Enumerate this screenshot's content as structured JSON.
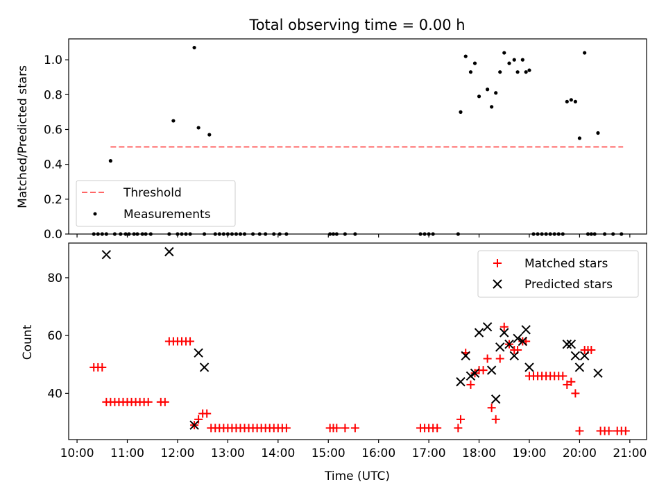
{
  "chart_data": [
    {
      "type": "scatter",
      "title": "Total observing time = 0.00 h",
      "ylabel": "Matched/Predicted stars",
      "xlabel": "",
      "ylim": [
        0,
        1.12
      ],
      "yticks": [
        "0.0",
        "0.2",
        "0.4",
        "0.6",
        "0.8",
        "1.0"
      ],
      "grid": false,
      "legend_position": "lower-left",
      "threshold": {
        "name": "Threshold",
        "value": 0.5,
        "x_start": "10:40",
        "x_end": "20:52",
        "color": "#ff6666",
        "style": "dashed"
      },
      "series": [
        {
          "name": "Measurements",
          "color": "#000000",
          "points": [
            [
              "10:20",
              0
            ],
            [
              "10:25",
              0
            ],
            [
              "10:30",
              0
            ],
            [
              "10:35",
              0
            ],
            [
              "10:40",
              0.42
            ],
            [
              "10:45",
              0
            ],
            [
              "10:52",
              0
            ],
            [
              "10:58",
              0
            ],
            [
              "11:02",
              0
            ],
            [
              "11:08",
              0
            ],
            [
              "11:12",
              0
            ],
            [
              "11:18",
              0
            ],
            [
              "11:22",
              0
            ],
            [
              "11:28",
              0
            ],
            [
              "11:50",
              0
            ],
            [
              "11:55",
              0.65
            ],
            [
              "12:00",
              0
            ],
            [
              "12:05",
              0
            ],
            [
              "12:10",
              0
            ],
            [
              "12:15",
              0
            ],
            [
              "12:20",
              1.07
            ],
            [
              "12:25",
              0.61
            ],
            [
              "12:32",
              0
            ],
            [
              "12:38",
              0.57
            ],
            [
              "12:45",
              0
            ],
            [
              "12:50",
              0
            ],
            [
              "12:55",
              0
            ],
            [
              "13:00",
              0
            ],
            [
              "13:05",
              0
            ],
            [
              "13:10",
              0
            ],
            [
              "13:15",
              0
            ],
            [
              "13:20",
              0
            ],
            [
              "13:30",
              0
            ],
            [
              "13:38",
              0
            ],
            [
              "13:45",
              0
            ],
            [
              "13:55",
              0
            ],
            [
              "14:02",
              0
            ],
            [
              "14:10",
              0
            ],
            [
              "15:02",
              0
            ],
            [
              "15:06",
              0
            ],
            [
              "15:10",
              0
            ],
            [
              "15:20",
              0
            ],
            [
              "15:32",
              0
            ],
            [
              "16:50",
              0
            ],
            [
              "16:55",
              0
            ],
            [
              "17:00",
              0
            ],
            [
              "17:05",
              0
            ],
            [
              "17:35",
              0
            ],
            [
              "17:38",
              0.7
            ],
            [
              "17:44",
              1.02
            ],
            [
              "17:50",
              0.93
            ],
            [
              "17:55",
              0.98
            ],
            [
              "18:00",
              0.79
            ],
            [
              "18:10",
              0.83
            ],
            [
              "18:15",
              0.73
            ],
            [
              "18:20",
              0.81
            ],
            [
              "18:25",
              0.93
            ],
            [
              "18:30",
              1.04
            ],
            [
              "18:36",
              0.98
            ],
            [
              "18:42",
              1.0
            ],
            [
              "18:46",
              0.93
            ],
            [
              "18:52",
              1.0
            ],
            [
              "18:56",
              0.93
            ],
            [
              "19:00",
              0.94
            ],
            [
              "19:05",
              0
            ],
            [
              "19:10",
              0
            ],
            [
              "19:15",
              0
            ],
            [
              "19:20",
              0
            ],
            [
              "19:25",
              0
            ],
            [
              "19:30",
              0
            ],
            [
              "19:35",
              0
            ],
            [
              "19:40",
              0
            ],
            [
              "19:45",
              0.76
            ],
            [
              "19:50",
              0.77
            ],
            [
              "19:55",
              0.76
            ],
            [
              "20:00",
              0.55
            ],
            [
              "20:06",
              1.04
            ],
            [
              "20:10",
              0
            ],
            [
              "20:14",
              0
            ],
            [
              "20:18",
              0
            ],
            [
              "20:22",
              0.58
            ],
            [
              "20:30",
              0
            ],
            [
              "20:40",
              0
            ],
            [
              "20:50",
              0
            ]
          ]
        }
      ]
    },
    {
      "type": "scatter",
      "title": "",
      "ylabel": "Count",
      "xlabel": "Time (UTC)",
      "xlim": [
        "09:50",
        "21:20"
      ],
      "xticks": [
        "10:00",
        "11:00",
        "12:00",
        "13:00",
        "14:00",
        "15:00",
        "16:00",
        "17:00",
        "18:00",
        "19:00",
        "20:00",
        "21:00"
      ],
      "ylim": [
        24,
        92
      ],
      "yticks": [
        "40",
        "60",
        "80"
      ],
      "grid": false,
      "legend_position": "upper-right",
      "series": [
        {
          "name": "Matched stars",
          "color": "#ff0000",
          "marker": "plus",
          "points": [
            [
              "10:20",
              49
            ],
            [
              "10:25",
              49
            ],
            [
              "10:30",
              49
            ],
            [
              "10:35",
              37
            ],
            [
              "10:40",
              37
            ],
            [
              "10:45",
              37
            ],
            [
              "10:50",
              37
            ],
            [
              "10:55",
              37
            ],
            [
              "11:00",
              37
            ],
            [
              "11:05",
              37
            ],
            [
              "11:10",
              37
            ],
            [
              "11:15",
              37
            ],
            [
              "11:20",
              37
            ],
            [
              "11:25",
              37
            ],
            [
              "11:40",
              37
            ],
            [
              "11:45",
              37
            ],
            [
              "11:50",
              58
            ],
            [
              "11:55",
              58
            ],
            [
              "12:00",
              58
            ],
            [
              "12:05",
              58
            ],
            [
              "12:10",
              58
            ],
            [
              "12:15",
              58
            ],
            [
              "12:20",
              29
            ],
            [
              "12:25",
              31
            ],
            [
              "12:30",
              33
            ],
            [
              "12:35",
              33
            ],
            [
              "12:40",
              28
            ],
            [
              "12:45",
              28
            ],
            [
              "12:50",
              28
            ],
            [
              "12:55",
              28
            ],
            [
              "13:00",
              28
            ],
            [
              "13:05",
              28
            ],
            [
              "13:10",
              28
            ],
            [
              "13:15",
              28
            ],
            [
              "13:20",
              28
            ],
            [
              "13:25",
              28
            ],
            [
              "13:30",
              28
            ],
            [
              "13:35",
              28
            ],
            [
              "13:40",
              28
            ],
            [
              "13:45",
              28
            ],
            [
              "13:50",
              28
            ],
            [
              "13:55",
              28
            ],
            [
              "14:00",
              28
            ],
            [
              "14:05",
              28
            ],
            [
              "14:10",
              28
            ],
            [
              "15:02",
              28
            ],
            [
              "15:06",
              28
            ],
            [
              "15:10",
              28
            ],
            [
              "15:20",
              28
            ],
            [
              "15:32",
              28
            ],
            [
              "16:50",
              28
            ],
            [
              "16:55",
              28
            ],
            [
              "17:00",
              28
            ],
            [
              "17:05",
              28
            ],
            [
              "17:10",
              28
            ],
            [
              "17:35",
              28
            ],
            [
              "17:38",
              31
            ],
            [
              "17:44",
              54
            ],
            [
              "17:50",
              43
            ],
            [
              "17:55",
              47
            ],
            [
              "18:00",
              48
            ],
            [
              "18:05",
              48
            ],
            [
              "18:10",
              52
            ],
            [
              "18:15",
              35
            ],
            [
              "18:20",
              31
            ],
            [
              "18:25",
              52
            ],
            [
              "18:30",
              63
            ],
            [
              "18:36",
              57
            ],
            [
              "18:42",
              55
            ],
            [
              "18:46",
              55
            ],
            [
              "18:52",
              58
            ],
            [
              "18:56",
              58
            ],
            [
              "19:00",
              46
            ],
            [
              "19:05",
              46
            ],
            [
              "19:10",
              46
            ],
            [
              "19:15",
              46
            ],
            [
              "19:20",
              46
            ],
            [
              "19:25",
              46
            ],
            [
              "19:30",
              46
            ],
            [
              "19:35",
              46
            ],
            [
              "19:40",
              46
            ],
            [
              "19:45",
              43
            ],
            [
              "19:50",
              44
            ],
            [
              "19:55",
              40
            ],
            [
              "20:00",
              27
            ],
            [
              "20:06",
              55
            ],
            [
              "20:10",
              55
            ],
            [
              "20:14",
              55
            ],
            [
              "20:25",
              27
            ],
            [
              "20:30",
              27
            ],
            [
              "20:35",
              27
            ],
            [
              "20:45",
              27
            ],
            [
              "20:50",
              27
            ],
            [
              "20:55",
              27
            ]
          ]
        },
        {
          "name": "Predicted stars",
          "color": "#000000",
          "marker": "x",
          "points": [
            [
              "10:35",
              88
            ],
            [
              "11:50",
              89
            ],
            [
              "12:20",
              29
            ],
            [
              "12:25",
              54
            ],
            [
              "12:32",
              49
            ],
            [
              "17:38",
              44
            ],
            [
              "17:44",
              53
            ],
            [
              "17:50",
              46
            ],
            [
              "17:55",
              47
            ],
            [
              "18:00",
              61
            ],
            [
              "18:10",
              63
            ],
            [
              "18:15",
              48
            ],
            [
              "18:20",
              38
            ],
            [
              "18:25",
              56
            ],
            [
              "18:30",
              61
            ],
            [
              "18:36",
              57
            ],
            [
              "18:42",
              53
            ],
            [
              "18:46",
              59
            ],
            [
              "18:52",
              58
            ],
            [
              "18:56",
              62
            ],
            [
              "19:00",
              49
            ],
            [
              "19:45",
              57
            ],
            [
              "19:50",
              57
            ],
            [
              "19:55",
              53
            ],
            [
              "20:00",
              49
            ],
            [
              "20:06",
              53
            ],
            [
              "20:22",
              47
            ]
          ]
        }
      ]
    }
  ]
}
